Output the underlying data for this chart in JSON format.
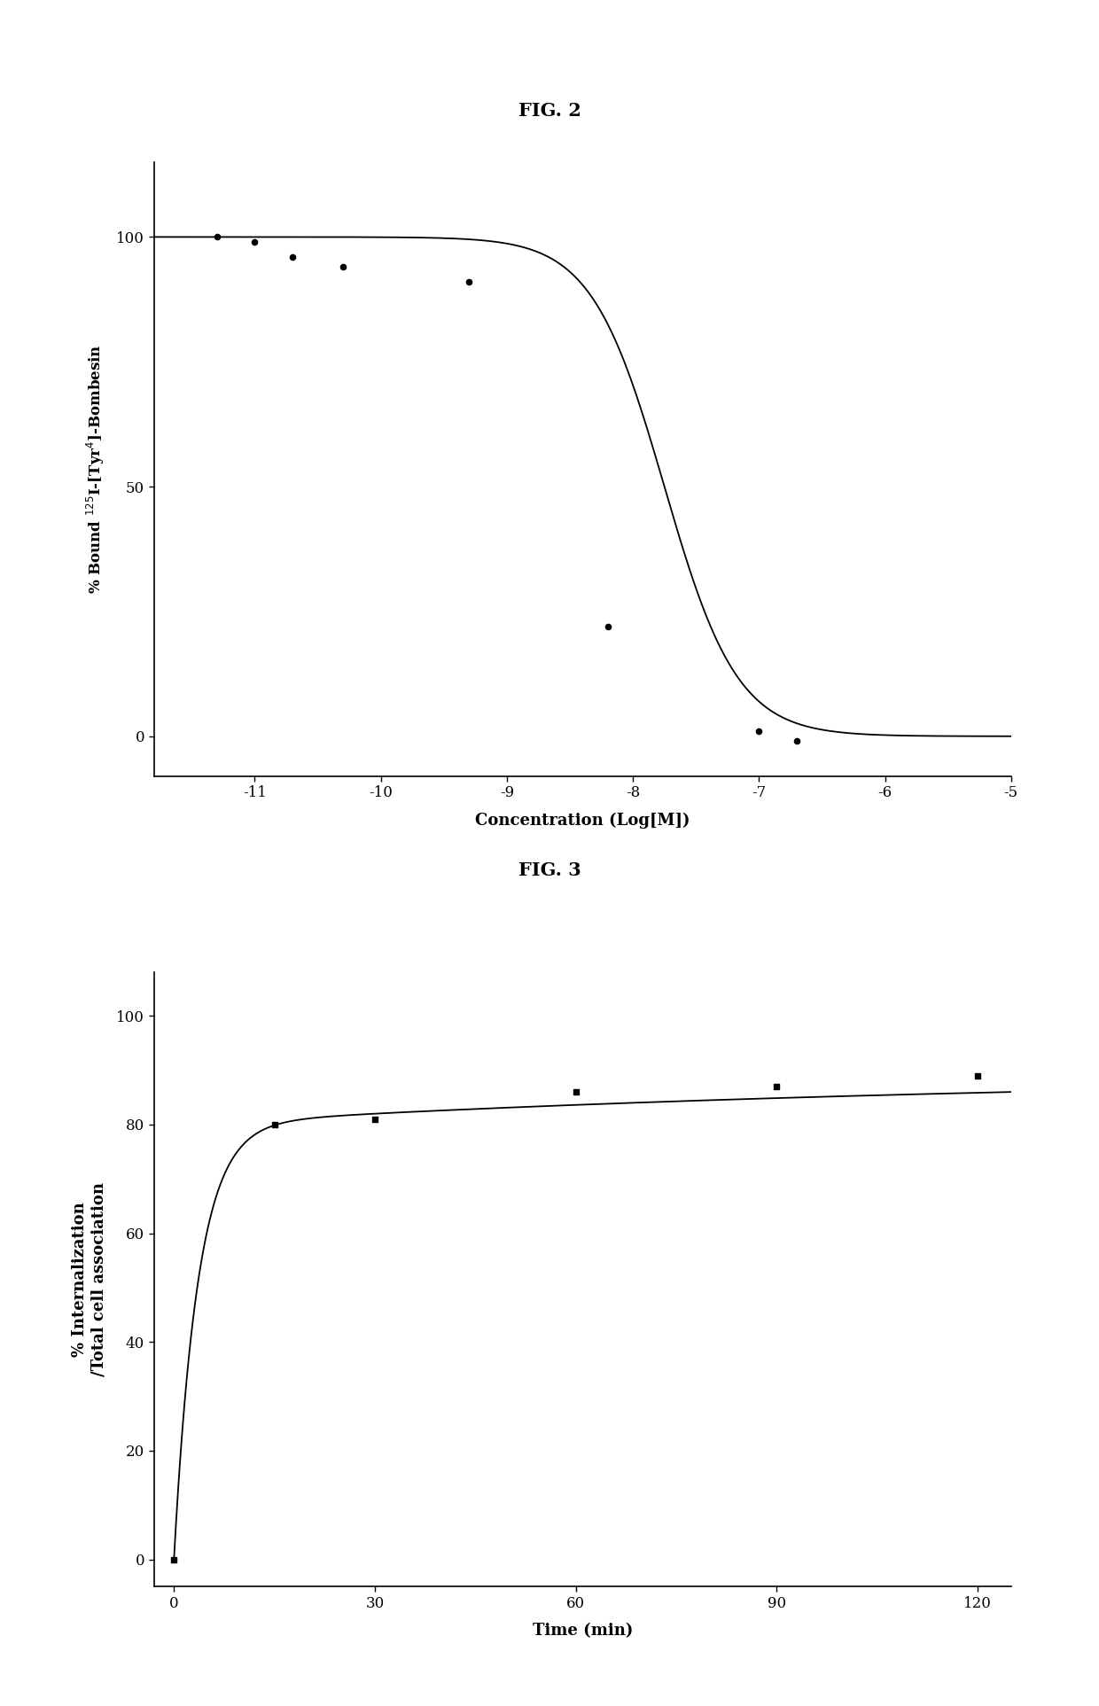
{
  "fig2_title": "FIG. 2",
  "fig3_title": "FIG. 3",
  "fig2_xlabel": "Concentration (Log[M])",
  "fig2_ylabel": "% Bound $^{125}$I-[Tyr$^{4}$]-Bombesin",
  "fig2_xlim": [
    -11.8,
    -5.0
  ],
  "fig2_ylim": [
    -8,
    115
  ],
  "fig2_xticks": [
    -11,
    -10,
    -9,
    -8,
    -7,
    -6,
    -5
  ],
  "fig2_yticks": [
    0,
    50,
    100
  ],
  "fig2_data_x": [
    -11.3,
    -11.0,
    -10.7,
    -10.3,
    -9.3,
    -8.2,
    -7.0,
    -6.7
  ],
  "fig2_data_y": [
    100,
    99,
    96,
    94,
    91,
    22,
    1,
    -1
  ],
  "fig2_curve_ic50": -7.75,
  "fig2_curve_hill": 1.5,
  "fig3_xlabel": "Time (min)",
  "fig3_ylabel": "% Internalization\n/Total cell association",
  "fig3_xlim": [
    -3,
    125
  ],
  "fig3_ylim": [
    -5,
    108
  ],
  "fig3_xticks": [
    0,
    30,
    60,
    90,
    120
  ],
  "fig3_yticks": [
    0,
    20,
    40,
    60,
    80,
    100
  ],
  "fig3_data_x": [
    0,
    15,
    30,
    60,
    90,
    120
  ],
  "fig3_data_y": [
    0,
    80,
    81,
    86,
    87,
    89
  ],
  "fig3_A1": 80.0,
  "fig3_k1": 0.28,
  "fig3_A2": 9.5,
  "fig3_k2": 0.008,
  "line_color": "#000000",
  "marker_color": "#000000",
  "background_color": "#ffffff",
  "title_fontsize": 15,
  "label_fontsize": 13,
  "tick_fontsize": 12
}
